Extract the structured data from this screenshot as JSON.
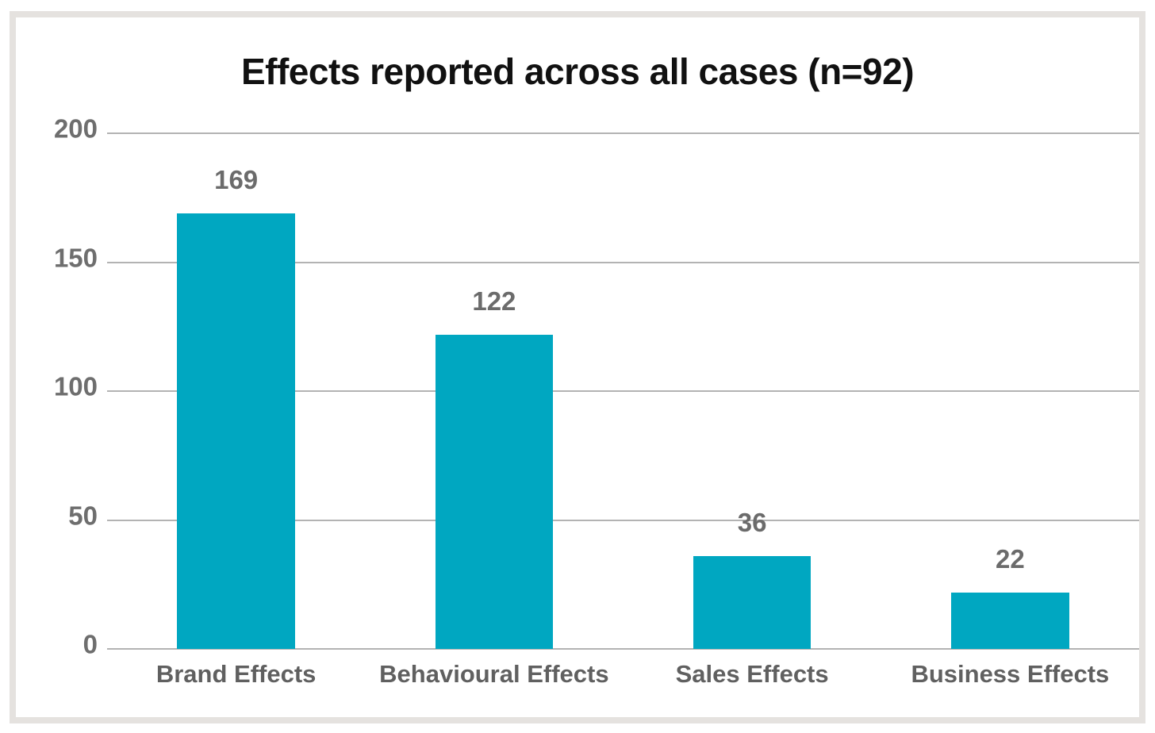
{
  "page": {
    "background_color": "#ffffff",
    "frame_border_color": "#e5e2df"
  },
  "chart_data": {
    "type": "bar",
    "title": "Effects reported across all cases (n=92)",
    "categories": [
      "Brand Effects",
      "Behavioural Effects",
      "Sales Effects",
      "Business Effects"
    ],
    "values": [
      169,
      122,
      36,
      22
    ],
    "data_labels": [
      "169",
      "122",
      "36",
      "22"
    ],
    "xlabel": "",
    "ylabel": "",
    "ylim": [
      0,
      200
    ],
    "yticks": [
      0,
      50,
      100,
      150,
      200
    ],
    "grid": "horizontal",
    "legend": "none",
    "colors": {
      "bar": "#00a7c1",
      "title_text": "#111111",
      "y_tick_text": "#6e6e6e",
      "x_tick_text": "#606060",
      "value_label_text": "#6b6b6b",
      "gridline": "#b3b3b3"
    }
  }
}
